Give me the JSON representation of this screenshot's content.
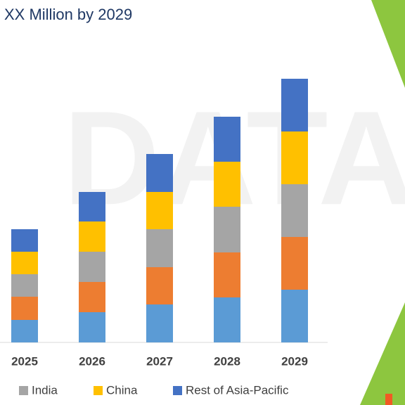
{
  "chart_data": {
    "type": "bar",
    "stacked": true,
    "title": "XX Million by 2029",
    "categories": [
      "2025",
      "2026",
      "2027",
      "2028",
      "2029"
    ],
    "series": [
      {
        "color": "#5b9bd5",
        "values": [
          32,
          43,
          54,
          64,
          75
        ]
      },
      {
        "color": "#ed7d31",
        "values": [
          33,
          43,
          53,
          64,
          75
        ]
      },
      {
        "name": "India",
        "color": "#a5a5a5",
        "values": [
          32,
          43,
          54,
          65,
          75
        ]
      },
      {
        "name": "China",
        "color": "#ffc000",
        "values": [
          32,
          43,
          53,
          64,
          75
        ]
      },
      {
        "name": "Rest of Asia-Pacific",
        "color": "#4472c4",
        "values": [
          32,
          42,
          54,
          64,
          75
        ]
      }
    ],
    "ylim": [
      0,
      400
    ]
  }
}
